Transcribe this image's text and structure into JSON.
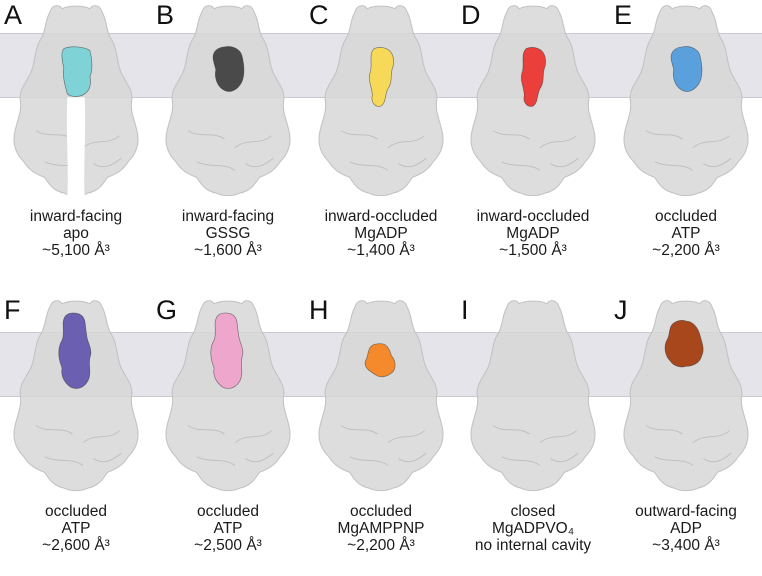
{
  "colors": {
    "band": "#dcdce4",
    "protein": "#d7d7d7",
    "protein_edge": "#c2c2c2"
  },
  "panels": [
    {
      "letter": "A",
      "lines": [
        "inward-facing",
        "apo",
        "~5,100 Å³"
      ],
      "cavity": "#7fd3d6",
      "cavity_shape": "inward-large",
      "open_bottom": true
    },
    {
      "letter": "B",
      "lines": [
        "inward-facing",
        "GSSG",
        "~1,600 Å³"
      ],
      "cavity": "#4a4a4a",
      "cavity_shape": "top-blob",
      "open_bottom": false
    },
    {
      "letter": "C",
      "lines": [
        "inward-occluded",
        "MgADP",
        "~1,400 Å³"
      ],
      "cavity": "#f7d95a",
      "cavity_shape": "long-blob",
      "open_bottom": false
    },
    {
      "letter": "D",
      "lines": [
        "inward-occluded",
        "MgADP",
        "~1,500 Å³"
      ],
      "cavity": "#ea3f3a",
      "cavity_shape": "long-blob",
      "open_bottom": false
    },
    {
      "letter": "E",
      "lines": [
        "occluded",
        "ATP",
        "~2,200 Å³"
      ],
      "cavity": "#5aa0dc",
      "cavity_shape": "top-blob",
      "open_bottom": false
    },
    {
      "letter": "F",
      "lines": [
        "occluded",
        "ATP",
        "~2,600 Å³"
      ],
      "cavity": "#6a5fb0",
      "cavity_shape": "tall-blob",
      "open_bottom": false
    },
    {
      "letter": "G",
      "lines": [
        "occluded",
        "ATP",
        "~2,500 Å³"
      ],
      "cavity": "#eea6cc",
      "cavity_shape": "tall-blob",
      "open_bottom": false
    },
    {
      "letter": "H",
      "lines": [
        "occluded",
        "MgAMPPNP",
        "~2,200 Å³"
      ],
      "cavity": "#f48a2c",
      "cavity_shape": "small-blob",
      "open_bottom": false
    },
    {
      "letter": "I",
      "lines": [
        "closed",
        "MgADPVO₄",
        "no internal cavity"
      ],
      "cavity": "",
      "cavity_shape": "none",
      "open_bottom": false
    },
    {
      "letter": "J",
      "lines": [
        "outward-facing",
        "ADP",
        "~3,400 Å³"
      ],
      "cavity": "#a8461c",
      "cavity_shape": "outward",
      "open_bottom": false
    }
  ]
}
